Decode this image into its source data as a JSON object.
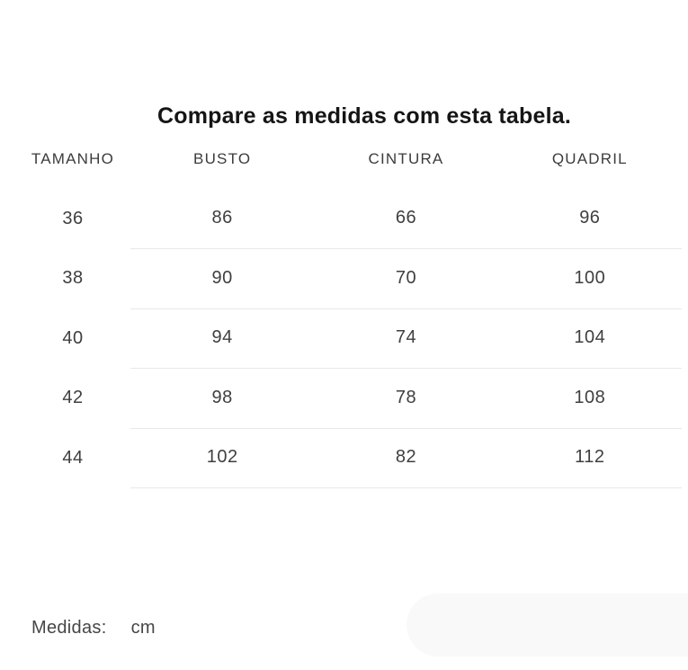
{
  "title": "Compare as medidas com esta tabela.",
  "table": {
    "headers": [
      "TAMANHO",
      "BUSTO",
      "CINTURA",
      "QUADRIL"
    ],
    "rows": [
      [
        "36",
        "86",
        "66",
        "96"
      ],
      [
        "38",
        "90",
        "70",
        "100"
      ],
      [
        "40",
        "94",
        "74",
        "104"
      ],
      [
        "42",
        "98",
        "78",
        "108"
      ],
      [
        "44",
        "102",
        "82",
        "112"
      ]
    ]
  },
  "footer": {
    "label": "Medidas:",
    "unit": "cm"
  },
  "colors": {
    "title_text": "#151515",
    "header_text": "#3c3c3c",
    "value_text": "#3f3f3f",
    "separator_line": "#e8e8e8",
    "pill_background": "#f9f9f9",
    "background": "#ffffff"
  }
}
